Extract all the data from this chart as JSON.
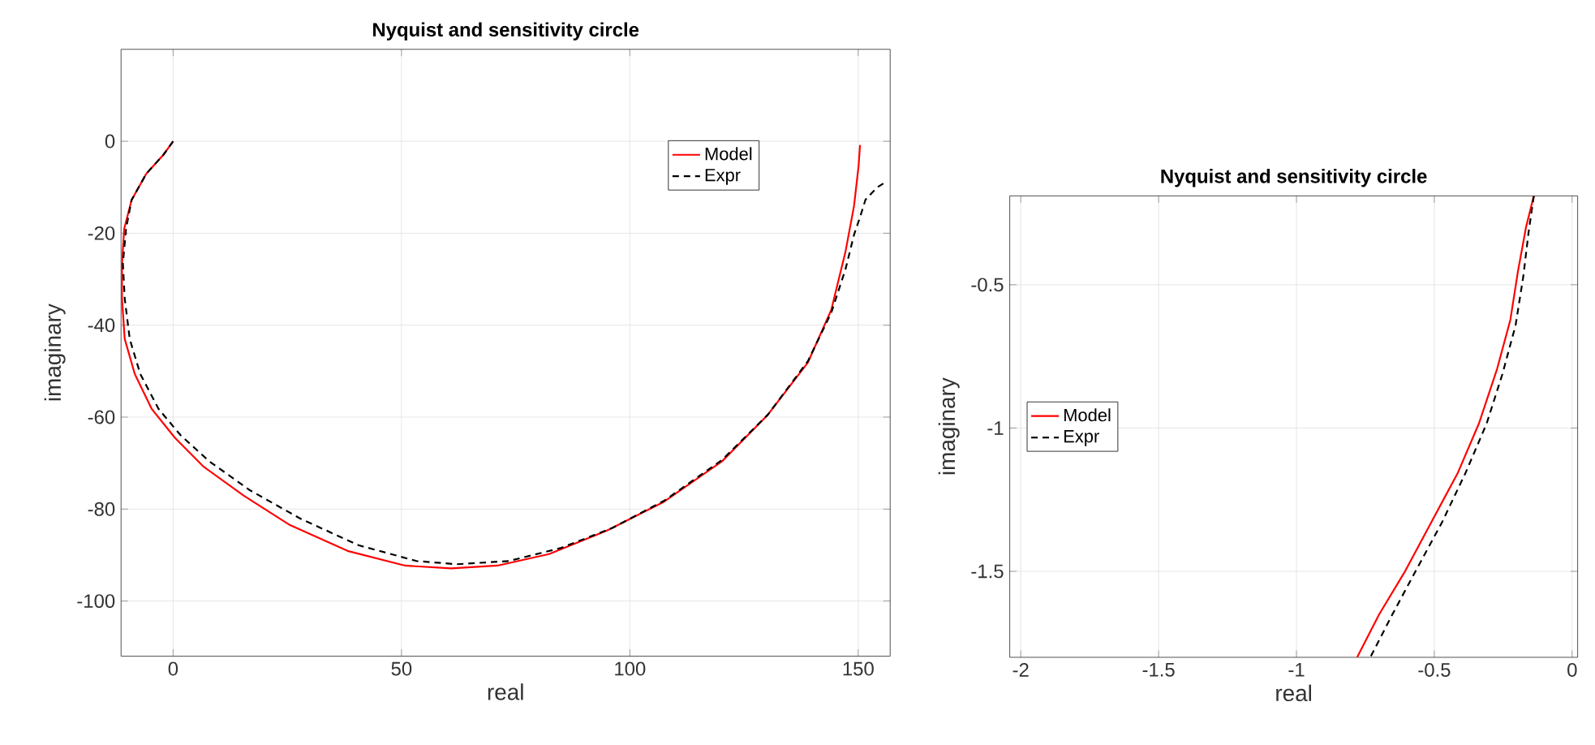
{
  "chart_data": [
    {
      "type": "line",
      "title": "Nyquist and sensitivity circle",
      "xlabel": "real",
      "ylabel": "imaginary",
      "xlim": [
        -11.4,
        157
      ],
      "ylim": [
        -112,
        20
      ],
      "xticks": [
        0,
        50,
        100,
        150
      ],
      "yticks": [
        -100,
        -80,
        -60,
        -40,
        -20,
        0
      ],
      "grid": true,
      "legend": "top right",
      "series": [
        {
          "name": "Model",
          "color": "#ff0000",
          "line_style": "solid",
          "x": [
            0,
            -2.1,
            -5.9,
            -9.1,
            -10.7,
            -11.2,
            -11.2,
            -10.6,
            -8.4,
            -4.7,
            0.4,
            6.7,
            15.5,
            25.6,
            38.2,
            50.8,
            60.9,
            71,
            82.3,
            94.9,
            107.5,
            120.2,
            130.2,
            139,
            144.1,
            147.2,
            149.1,
            150.1,
            150.4
          ],
          "values": [
            0,
            -2.9,
            -7.1,
            -12.8,
            -19,
            -26.6,
            -34.2,
            -43,
            -50.6,
            -58.2,
            -64.5,
            -70.8,
            -77.1,
            -83.5,
            -89.1,
            -92.3,
            -92.9,
            -92.3,
            -89.8,
            -84.7,
            -78.4,
            -69.6,
            -59.5,
            -48.1,
            -36.7,
            -24.1,
            -14,
            -5.2,
            -0.8
          ]
        },
        {
          "name": "Expr",
          "color": "#000000",
          "line_style": "dashed",
          "x": [
            0,
            -2.1,
            -5.9,
            -9.1,
            -10.3,
            -11,
            -10.6,
            -9.5,
            -7.2,
            -3.2,
            1.6,
            7.9,
            16.8,
            28.1,
            40.7,
            53.3,
            62.1,
            73.5,
            84.8,
            96.2,
            107.5,
            120.2,
            130.2,
            139,
            144.1,
            147.2,
            149.1,
            150.4,
            151.6,
            154.2,
            156.3
          ],
          "values": [
            0,
            -2.9,
            -7.1,
            -12.8,
            -19,
            -26.6,
            -34.2,
            -43,
            -50.6,
            -58.2,
            -63.9,
            -69.6,
            -75.9,
            -82.2,
            -87.9,
            -91.3,
            -92,
            -91.3,
            -88.5,
            -84.1,
            -78.2,
            -69.3,
            -59.5,
            -47.8,
            -37.3,
            -27.9,
            -20.3,
            -16.5,
            -12.7,
            -10,
            -8.7
          ]
        }
      ]
    },
    {
      "type": "line",
      "title": "Nyquist and sensitivity circle",
      "xlabel": "real",
      "ylabel": "imaginary",
      "xlim": [
        -2.04,
        0.02
      ],
      "ylim": [
        -1.8,
        -0.19
      ],
      "xticks": [
        -2,
        -1.5,
        -1,
        -0.5,
        0
      ],
      "yticks": [
        -1.5,
        -1,
        -0.5
      ],
      "grid": true,
      "legend": "left",
      "series": [
        {
          "name": "Model",
          "color": "#ff0000",
          "line_style": "solid",
          "x": [
            -0.139,
            -0.167,
            -0.196,
            -0.224,
            -0.272,
            -0.338,
            -0.414,
            -0.51,
            -0.605,
            -0.7,
            -0.78
          ],
          "values": [
            -0.19,
            -0.298,
            -0.45,
            -0.622,
            -0.793,
            -0.984,
            -1.155,
            -1.327,
            -1.498,
            -1.65,
            -1.8
          ]
        },
        {
          "name": "Expr",
          "color": "#000000",
          "line_style": "dashed",
          "x": [
            -0.139,
            -0.158,
            -0.177,
            -0.205,
            -0.253,
            -0.31,
            -0.386,
            -0.471,
            -0.567,
            -0.652,
            -0.732
          ],
          "values": [
            -0.19,
            -0.317,
            -0.47,
            -0.641,
            -0.812,
            -0.984,
            -1.155,
            -1.327,
            -1.498,
            -1.65,
            -1.8
          ]
        }
      ]
    }
  ]
}
